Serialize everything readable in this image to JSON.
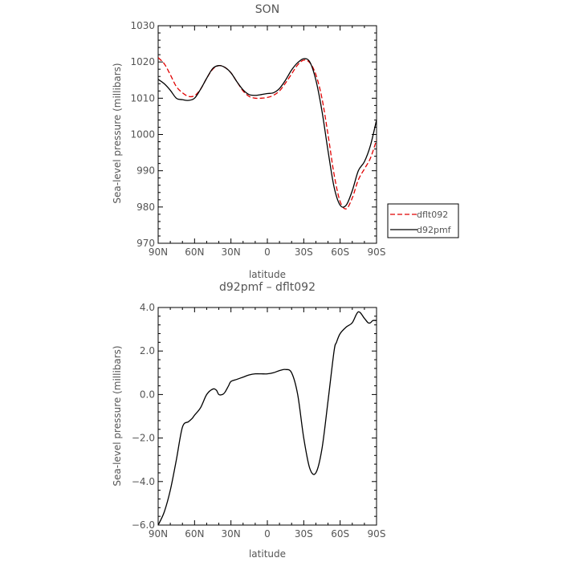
{
  "chart_data": [
    {
      "type": "line",
      "title": "SON",
      "xlabel": "latitude",
      "ylabel": "Sea-level pressure (millibars)",
      "ylim": [
        970,
        1030
      ],
      "yticks": [
        "970",
        "980",
        "990",
        "1000",
        "1010",
        "1020",
        "1030"
      ],
      "xlim": [
        90,
        -90
      ],
      "xticks": [
        {
          "v": 90,
          "label": "90N"
        },
        {
          "v": 60,
          "label": "60N"
        },
        {
          "v": 30,
          "label": "30N"
        },
        {
          "v": 0,
          "label": "0"
        },
        {
          "v": -30,
          "label": "30S"
        },
        {
          "v": -60,
          "label": "60S"
        },
        {
          "v": -90,
          "label": "90S"
        }
      ],
      "legend": {
        "placement": "right-outside-bottom",
        "entries": [
          "dflt092",
          "d92pmf"
        ]
      },
      "series": [
        {
          "name": "dflt092",
          "color": "#e00000",
          "dash": true,
          "x": [
            90,
            85,
            80,
            75,
            70,
            65,
            60,
            55,
            50,
            45,
            40,
            35,
            30,
            25,
            20,
            15,
            10,
            5,
            0,
            -5,
            -10,
            -15,
            -20,
            -25,
            -30,
            -35,
            -40,
            -45,
            -50,
            -55,
            -60,
            -65,
            -70,
            -75,
            -80,
            -85,
            -90
          ],
          "values": [
            1021.2,
            1019.5,
            1016.5,
            1013.2,
            1011.5,
            1010.5,
            1010.7,
            1012.5,
            1015.5,
            1018.0,
            1019.0,
            1018.5,
            1017.0,
            1014.5,
            1012.0,
            1010.5,
            1010.0,
            1010.0,
            1010.2,
            1010.8,
            1012.0,
            1014.2,
            1016.7,
            1019.2,
            1020.5,
            1019.8,
            1016.5,
            1010.0,
            1000.0,
            989.0,
            981.5,
            979.5,
            982.5,
            987.5,
            990.5,
            993.5,
            998.5
          ]
        },
        {
          "name": "d92pmf",
          "color": "#000000",
          "dash": false,
          "x": [
            90,
            85,
            80,
            75,
            70,
            65,
            60,
            55,
            50,
            45,
            40,
            35,
            30,
            25,
            20,
            15,
            10,
            5,
            0,
            -5,
            -10,
            -15,
            -20,
            -25,
            -30,
            -35,
            -40,
            -45,
            -50,
            -55,
            -60,
            -65,
            -70,
            -75,
            -80,
            -85,
            -90
          ],
          "values": [
            1015.2,
            1014.0,
            1012.2,
            1010.0,
            1009.6,
            1009.4,
            1010.0,
            1012.5,
            1015.5,
            1018.2,
            1019.0,
            1018.5,
            1017.0,
            1014.5,
            1012.3,
            1011.0,
            1010.8,
            1011.0,
            1011.3,
            1011.5,
            1012.7,
            1015.0,
            1017.8,
            1019.8,
            1020.9,
            1020.0,
            1015.0,
            1006.5,
            995.5,
            985.5,
            980.5,
            980.5,
            984.5,
            990.0,
            992.5,
            997.0,
            1004.0
          ]
        }
      ]
    },
    {
      "type": "line",
      "title": "d92pmf – dflt092",
      "xlabel": "latitude",
      "ylabel": "Sea-level pressure (millibars)",
      "ylim": [
        -6,
        4
      ],
      "yticks": [
        "−6.0",
        "−4.0",
        "−2.0",
        "0.0",
        "2.0",
        "4.0"
      ],
      "xlim": [
        90,
        -90
      ],
      "xticks": [
        {
          "v": 90,
          "label": "90N"
        },
        {
          "v": 60,
          "label": "60N"
        },
        {
          "v": 30,
          "label": "30N"
        },
        {
          "v": 0,
          "label": "0"
        },
        {
          "v": -30,
          "label": "30S"
        },
        {
          "v": -60,
          "label": "60S"
        },
        {
          "v": -90,
          "label": "90S"
        }
      ],
      "series": [
        {
          "color": "#000000",
          "dash": false,
          "x": [
            90,
            85,
            80,
            75,
            70,
            65,
            62,
            60,
            55,
            50,
            45,
            42,
            40,
            37,
            35,
            32,
            30,
            25,
            20,
            15,
            10,
            5,
            0,
            -5,
            -10,
            -15,
            -20,
            -25,
            -30,
            -35,
            -40,
            -45,
            -50,
            -55,
            -57,
            -60,
            -65,
            -70,
            -75,
            -80,
            -83,
            -85,
            -87,
            -90
          ],
          "values": [
            -6.0,
            -5.4,
            -4.4,
            -3.0,
            -1.5,
            -1.25,
            -1.1,
            -0.95,
            -0.6,
            0.0,
            0.25,
            0.2,
            0.0,
            0.0,
            0.1,
            0.4,
            0.6,
            0.7,
            0.8,
            0.9,
            0.95,
            0.95,
            0.95,
            1.0,
            1.1,
            1.15,
            1.0,
            0.0,
            -2.0,
            -3.4,
            -3.6,
            -2.5,
            -0.3,
            2.0,
            2.4,
            2.8,
            3.1,
            3.3,
            3.8,
            3.5,
            3.3,
            3.3,
            3.4,
            3.4
          ]
        }
      ]
    }
  ]
}
